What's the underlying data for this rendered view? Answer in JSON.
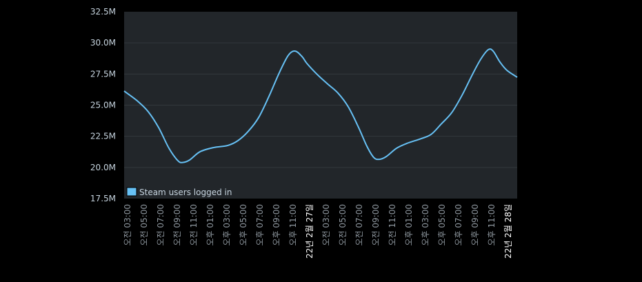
{
  "chart_data": {
    "type": "line",
    "title": "",
    "xlabel": "",
    "ylabel": "",
    "ylim": [
      17.5,
      32.5
    ],
    "xlim": [
      2.58,
      50.08
    ],
    "x_unit": "hours since 00:00 on 22년 2월 26일",
    "grid": true,
    "legend_placement": "bottom-left",
    "y_ticks": [
      {
        "value": 17.5,
        "label": "17.5M"
      },
      {
        "value": 20.0,
        "label": "20.0M"
      },
      {
        "value": 22.5,
        "label": "22.5M"
      },
      {
        "value": 25.0,
        "label": "25.0M"
      },
      {
        "value": 27.5,
        "label": "27.5M"
      },
      {
        "value": 30.0,
        "label": "30.0M"
      },
      {
        "value": 32.5,
        "label": "32.5M"
      }
    ],
    "x_ticks": [
      {
        "value": 3,
        "label": "오전 03:00"
      },
      {
        "value": 5,
        "label": "오전 05:00"
      },
      {
        "value": 7,
        "label": "오전 07:00"
      },
      {
        "value": 9,
        "label": "오전 09:00"
      },
      {
        "value": 11,
        "label": "오전 11:00"
      },
      {
        "value": 13,
        "label": "오후 01:00"
      },
      {
        "value": 15,
        "label": "오후 03:00"
      },
      {
        "value": 17,
        "label": "오후 05:00"
      },
      {
        "value": 19,
        "label": "오후 07:00"
      },
      {
        "value": 21,
        "label": "오후 09:00"
      },
      {
        "value": 23,
        "label": "오후 11:00"
      },
      {
        "value": 25,
        "label": "22년 2월 27일",
        "date": true
      },
      {
        "value": 27,
        "label": "오전 03:00"
      },
      {
        "value": 29,
        "label": "오전 05:00"
      },
      {
        "value": 31,
        "label": "오전 07:00"
      },
      {
        "value": 33,
        "label": "오전 09:00"
      },
      {
        "value": 35,
        "label": "오전 11:00"
      },
      {
        "value": 37,
        "label": "오후 01:00"
      },
      {
        "value": 39,
        "label": "오후 03:00"
      },
      {
        "value": 41,
        "label": "오후 05:00"
      },
      {
        "value": 43,
        "label": "오후 07:00"
      },
      {
        "value": 45,
        "label": "오후 09:00"
      },
      {
        "value": 47,
        "label": "오후 11:00"
      },
      {
        "value": 49,
        "label": "22년 2월 28일",
        "date": true
      }
    ],
    "series": [
      {
        "name": "Steam users logged in",
        "color": "#67c1f5",
        "unit": "M",
        "x": [
          2.58,
          4.25,
          5.5,
          6.75,
          8.0,
          9.08,
          9.67,
          10.5,
          11.75,
          13.42,
          15.08,
          16.33,
          17.58,
          18.83,
          20.08,
          21.33,
          22.42,
          23.25,
          24.08,
          24.67,
          25.92,
          27.17,
          28.42,
          29.67,
          30.92,
          31.92,
          32.75,
          33.42,
          34.25,
          35.5,
          36.75,
          38.42,
          39.67,
          40.92,
          42.17,
          43.42,
          44.67,
          45.67,
          46.58,
          47.17,
          48.0,
          48.83,
          50.08
        ],
        "values": [
          26.13,
          25.3,
          24.47,
          23.2,
          21.54,
          20.54,
          20.4,
          20.6,
          21.26,
          21.6,
          21.76,
          22.15,
          22.9,
          24.0,
          25.7,
          27.6,
          29.0,
          29.34,
          28.9,
          28.35,
          27.46,
          26.7,
          25.97,
          24.86,
          23.2,
          21.7,
          20.8,
          20.65,
          20.87,
          21.54,
          21.93,
          22.3,
          22.65,
          23.5,
          24.4,
          25.8,
          27.46,
          28.68,
          29.45,
          29.34,
          28.46,
          27.8,
          27.24
        ]
      }
    ]
  }
}
